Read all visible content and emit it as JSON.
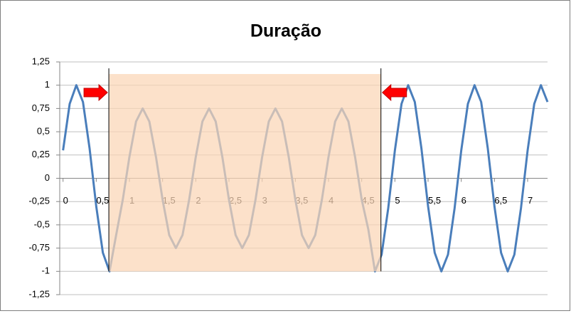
{
  "chart_data": {
    "type": "line",
    "title": "Duração",
    "x": [
      0,
      0.1,
      0.2,
      0.3,
      0.4,
      0.5,
      0.6,
      0.7,
      0.8,
      0.9,
      1,
      1.1,
      1.2,
      1.3,
      1.4,
      1.5,
      1.6,
      1.7,
      1.8,
      1.9,
      2,
      2.1,
      2.2,
      2.3,
      2.4,
      2.5,
      2.6,
      2.7,
      2.8,
      2.9,
      3,
      3.1,
      3.2,
      3.3,
      3.4,
      3.5,
      3.6,
      3.7,
      3.8,
      3.9,
      4,
      4.1,
      4.2,
      4.3,
      4.4,
      4.5,
      4.6,
      4.7,
      4.8,
      4.9,
      5,
      5.1,
      5.2,
      5.3,
      5.4,
      5.5,
      5.6,
      5.7,
      5.8,
      5.9,
      6,
      6.1,
      6.2,
      6.3,
      6.4,
      6.5,
      6.6,
      6.7,
      6.8,
      6.9,
      7,
      7.1,
      7.2,
      7.3
    ],
    "series": [
      {
        "color": "#4a7ebb",
        "values": [
          0.3,
          0.8,
          1.0,
          0.82,
          0.32,
          -0.3,
          -0.8,
          -1.0,
          -0.61,
          -0.23,
          0.23,
          0.61,
          0.75,
          0.61,
          0.23,
          -0.23,
          -0.61,
          -0.75,
          -0.61,
          -0.23,
          0.23,
          0.61,
          0.75,
          0.61,
          0.23,
          -0.23,
          -0.61,
          -0.75,
          -0.61,
          -0.23,
          0.23,
          0.61,
          0.75,
          0.61,
          0.23,
          -0.23,
          -0.61,
          -0.75,
          -0.61,
          -0.23,
          0.23,
          0.61,
          0.75,
          0.61,
          0.23,
          -0.23,
          -0.55,
          -1.0,
          -0.82,
          -0.32,
          0.3,
          0.8,
          1.0,
          0.82,
          0.32,
          -0.3,
          -0.8,
          -1.0,
          -0.82,
          -0.32,
          0.3,
          0.8,
          1.0,
          0.82,
          0.32,
          -0.3,
          -0.8,
          -1.0,
          -0.82,
          -0.32,
          0.3,
          0.8,
          1.0,
          0.82
        ]
      }
    ],
    "xlim": [
      -0.05,
      7.3
    ],
    "xticks": [
      0,
      {
        "value": 0.5,
        "label": "0,5"
      },
      1,
      {
        "value": 1.5,
        "label": "1,5"
      },
      2,
      {
        "value": 2.5,
        "label": "2,5"
      },
      3,
      {
        "value": 3.5,
        "label": "3,5"
      },
      4,
      {
        "value": 4.5,
        "label": "4,5"
      },
      5,
      {
        "value": 5.5,
        "label": "5,5"
      },
      6,
      {
        "value": 6.5,
        "label": "6,5"
      },
      7
    ],
    "ylim": [
      -1.25,
      1.25
    ],
    "yticks": [
      {
        "value": 1.25,
        "label": "1,25"
      },
      1,
      {
        "value": 0.75,
        "label": "0,75"
      },
      {
        "value": 0.5,
        "label": "0,5"
      },
      {
        "value": 0.25,
        "label": "0,25"
      },
      0,
      {
        "value": -0.25,
        "label": "-0,25"
      },
      {
        "value": -0.5,
        "label": "-0,5"
      },
      {
        "value": -0.75,
        "label": "-0,75"
      },
      -1,
      {
        "value": -1.25,
        "label": "-1,25"
      }
    ],
    "grid": true,
    "highlight": {
      "color": "#fbd5b5",
      "xrange": [
        0.69,
        4.79
      ],
      "yrange": [
        -1,
        1.12
      ]
    }
  }
}
